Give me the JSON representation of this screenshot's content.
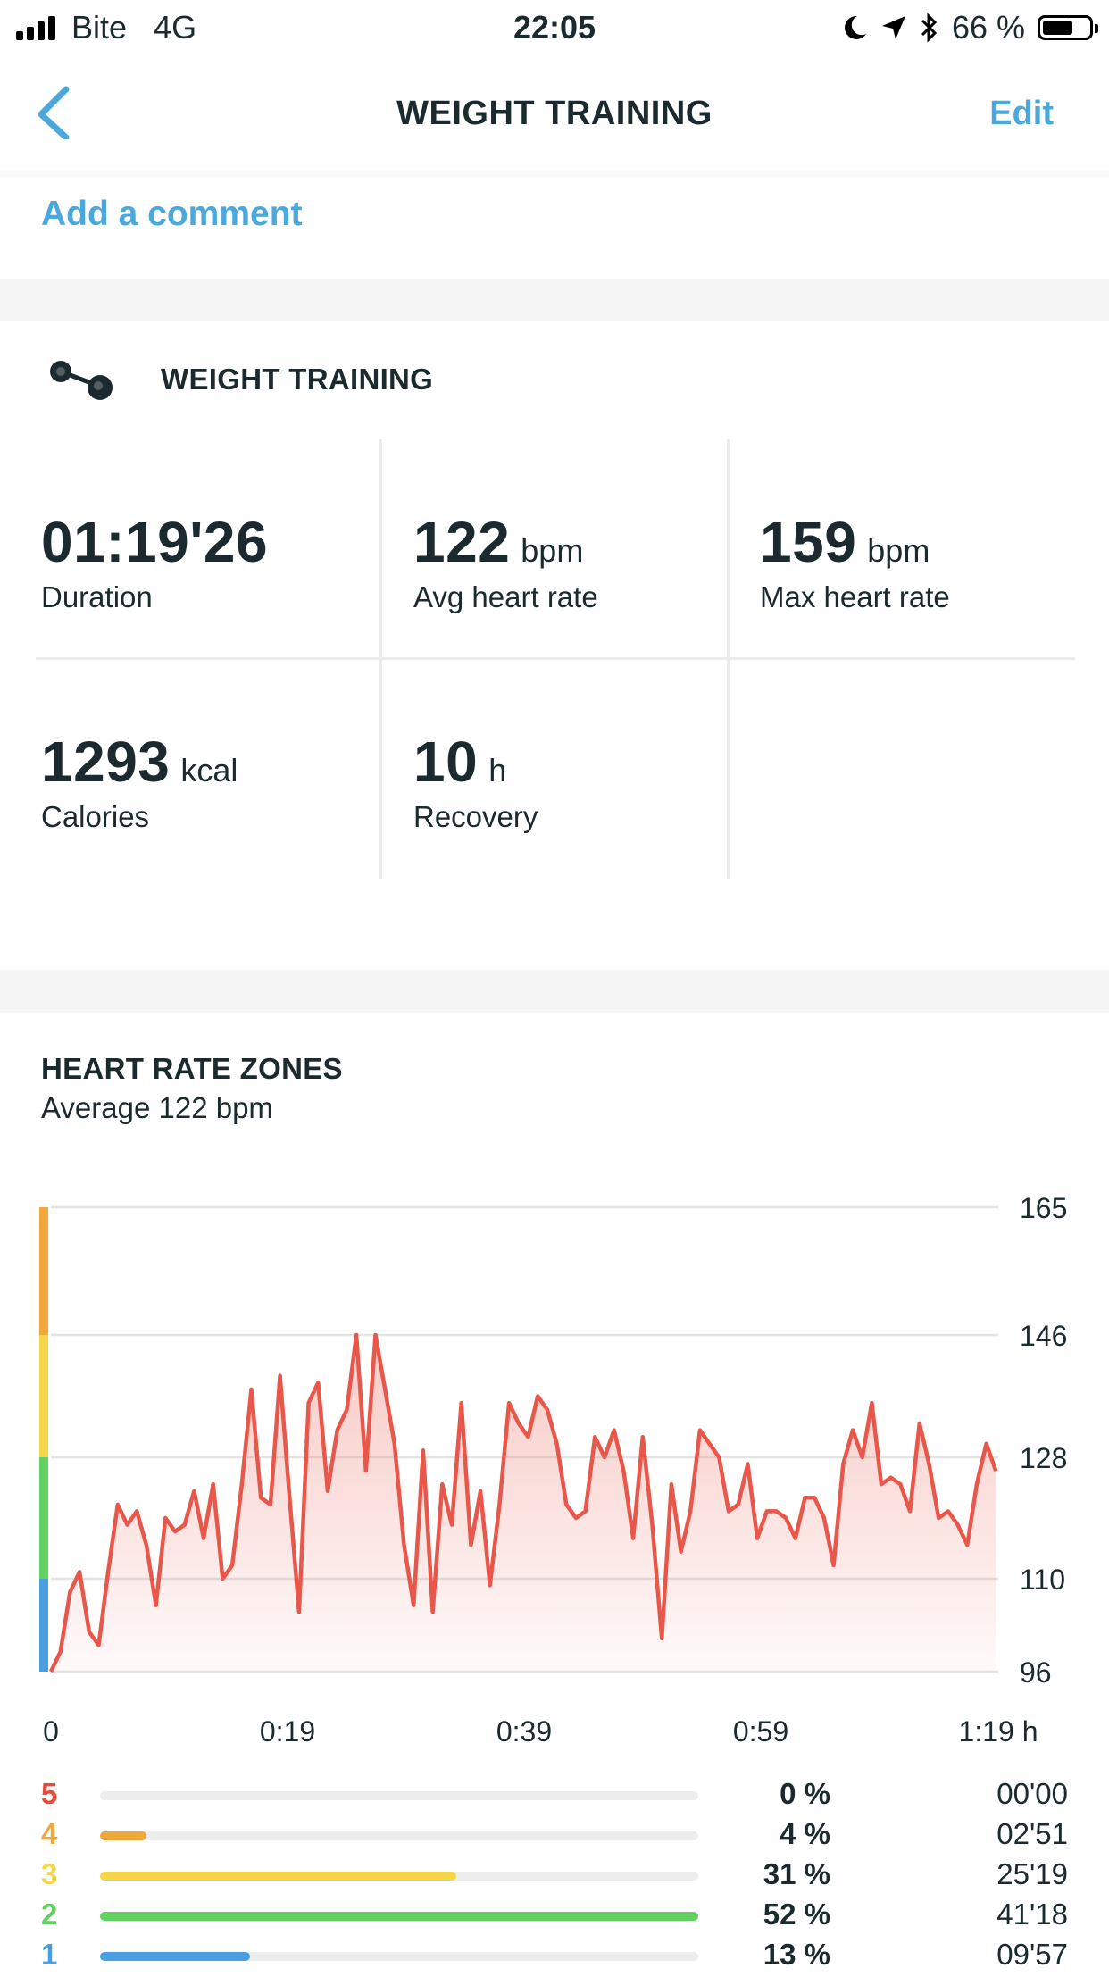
{
  "status_bar": {
    "carrier": "Bite",
    "network": "4G",
    "time": "22:05",
    "battery": "66 %",
    "battery_level": 0.66
  },
  "nav": {
    "title": "WEIGHT TRAINING",
    "edit_label": "Edit"
  },
  "comment": {
    "label": "Add a comment"
  },
  "activity": {
    "title": "WEIGHT TRAINING",
    "stats": [
      {
        "value": "01:19'26",
        "unit": "",
        "label": "Duration"
      },
      {
        "value": "122",
        "unit": "bpm",
        "label": "Avg heart rate"
      },
      {
        "value": "159",
        "unit": "bpm",
        "label": "Max heart rate"
      },
      {
        "value": "1293",
        "unit": "kcal",
        "label": "Calories"
      },
      {
        "value": "10",
        "unit": "h",
        "label": "Recovery"
      }
    ]
  },
  "hr_zones": {
    "title": "HEART RATE ZONES",
    "subtitle": "Average 122 bpm",
    "zones": [
      {
        "num": "5",
        "pct": "0 %",
        "time": "00'00",
        "fraction": 0.0,
        "color": "#e84b3c"
      },
      {
        "num": "4",
        "pct": "4 %",
        "time": "02'51",
        "fraction": 0.04,
        "color": "#f0a83a"
      },
      {
        "num": "3",
        "pct": "31 %",
        "time": "25'19",
        "fraction": 0.31,
        "color": "#f5d54a"
      },
      {
        "num": "2",
        "pct": "52 %",
        "time": "41'18",
        "fraction": 0.52,
        "color": "#63d161"
      },
      {
        "num": "1",
        "pct": "13 %",
        "time": "09'57",
        "fraction": 0.13,
        "color": "#4a9fe0"
      }
    ]
  },
  "chart_data": {
    "type": "area",
    "title": "",
    "xlabel": "",
    "ylabel": "",
    "x_ticks": [
      "0",
      "0:19",
      "0:39",
      "0:59",
      "1:19 h"
    ],
    "y_ticks": [
      165,
      146,
      128,
      110,
      96
    ],
    "ylim": [
      96,
      165
    ],
    "xlim_minutes": [
      0,
      79.4
    ],
    "line_color": "#e8574a",
    "zone_bands": [
      {
        "from": 96,
        "to": 110,
        "color": "#4a9fe0"
      },
      {
        "from": 110,
        "to": 128,
        "color": "#63d161"
      },
      {
        "from": 128,
        "to": 146,
        "color": "#f5d54a"
      },
      {
        "from": 146,
        "to": 165,
        "color": "#f0a83a"
      }
    ],
    "series": [
      {
        "x": [
          0,
          0.8,
          1.6,
          2.4,
          3.2,
          4,
          4.8,
          5.6,
          6.4,
          7.2,
          8,
          8.8,
          9.6,
          10.4,
          11.2,
          12,
          12.8,
          13.6,
          14.4,
          15.2,
          16,
          16.8,
          17.6,
          18.4,
          19.2,
          20,
          20.8,
          21.6,
          22.4,
          23.2,
          24,
          24.8,
          25.6,
          26.4,
          27.2,
          28,
          28.8,
          29.6,
          30.4,
          31.2,
          32,
          32.8,
          33.6,
          34.4,
          35.2,
          36,
          36.8,
          37.6,
          38.4,
          39.2,
          40,
          40.8,
          41.6,
          42.4,
          43.2,
          44,
          44.8,
          45.6,
          46.4,
          47.2,
          48,
          48.8,
          49.6,
          50.4,
          51.2,
          52,
          52.8,
          53.6,
          54.4,
          55.2,
          56,
          56.8,
          57.6,
          58.4,
          59.2,
          60,
          60.8,
          61.6,
          62.4,
          63.2,
          64,
          64.8,
          65.6,
          66.4,
          67.2,
          68,
          68.8,
          69.6,
          70.4,
          71.2,
          72,
          72.8,
          73.6,
          74.4,
          75.2,
          76,
          76.8,
          77.6,
          78.4,
          79.2
        ],
        "values": [
          96,
          99,
          108,
          111,
          102,
          100,
          111,
          121,
          118,
          120,
          115,
          106,
          119,
          117,
          118,
          123,
          116,
          124,
          110,
          112,
          124,
          138,
          122,
          121,
          140,
          122,
          105,
          136,
          139,
          123,
          132,
          135,
          146,
          126,
          146,
          138,
          130,
          115,
          106,
          129,
          105,
          124,
          118,
          136,
          115,
          123,
          109,
          121,
          136,
          133,
          131,
          137,
          135,
          130,
          121,
          119,
          120,
          131,
          128,
          132,
          126,
          116,
          131,
          118,
          101,
          124,
          114,
          120,
          132,
          130,
          128,
          120,
          121,
          127,
          116,
          120,
          120,
          119,
          116,
          122,
          122,
          119,
          112,
          127,
          132,
          128,
          136,
          124,
          125,
          124,
          120,
          133,
          127,
          119,
          120,
          118,
          115,
          124,
          130,
          126
        ]
      }
    ]
  }
}
